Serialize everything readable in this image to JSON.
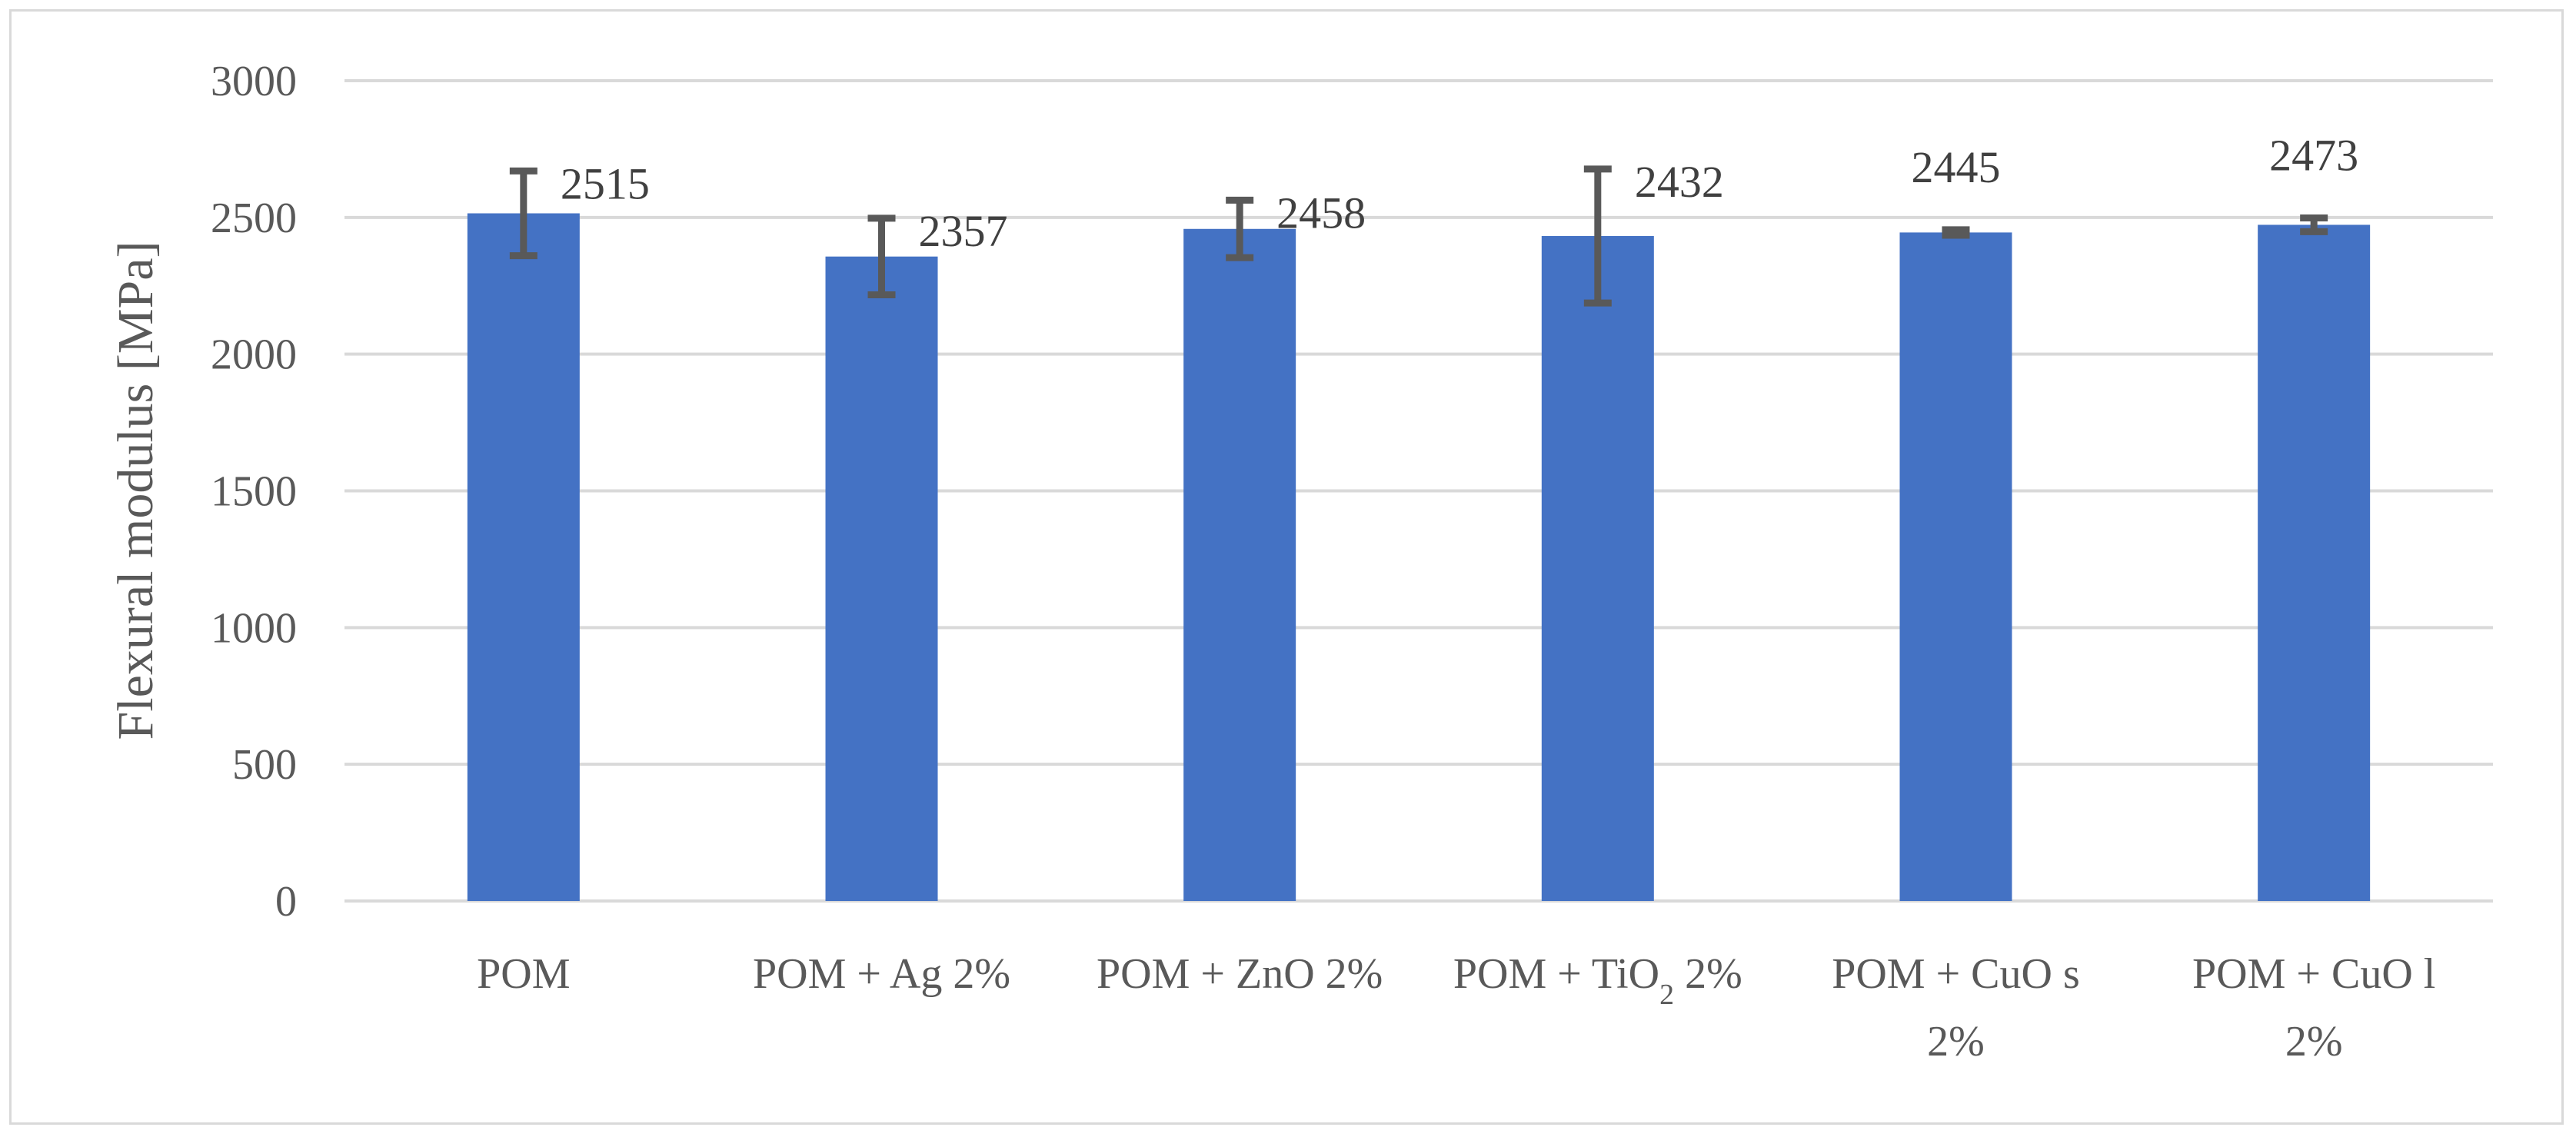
{
  "chart_data": {
    "type": "bar",
    "title": "",
    "xlabel": "",
    "ylabel": "Flexural modulus [MPa]",
    "ylim": [
      0,
      3000
    ],
    "yticks": [
      0,
      500,
      1000,
      1500,
      2000,
      2500,
      3000
    ],
    "grid": true,
    "legend": "none",
    "bar_color": "#4472c4",
    "error_bar_color": "#595959",
    "categories": [
      [
        "POM"
      ],
      [
        "POM + Ag 2%"
      ],
      [
        "POM + ZnO 2%"
      ],
      [
        "POM + TiO",
        "2",
        " 2%"
      ],
      [
        "POM + CuO s",
        "2%"
      ],
      [
        "POM + CuO l",
        "2%"
      ]
    ],
    "category_labels": [
      "POM",
      "POM + Ag 2%",
      "POM + ZnO 2%",
      "POM + TiO2 2%",
      "POM + CuO s 2%",
      "POM + CuO l 2%"
    ],
    "values": [
      2515,
      2357,
      2458,
      2432,
      2445,
      2473
    ],
    "error": [
      155,
      140,
      105,
      245,
      10,
      25
    ],
    "data_labels": [
      "2515",
      "2357",
      "2458",
      "2432",
      "2445",
      "2473"
    ]
  }
}
